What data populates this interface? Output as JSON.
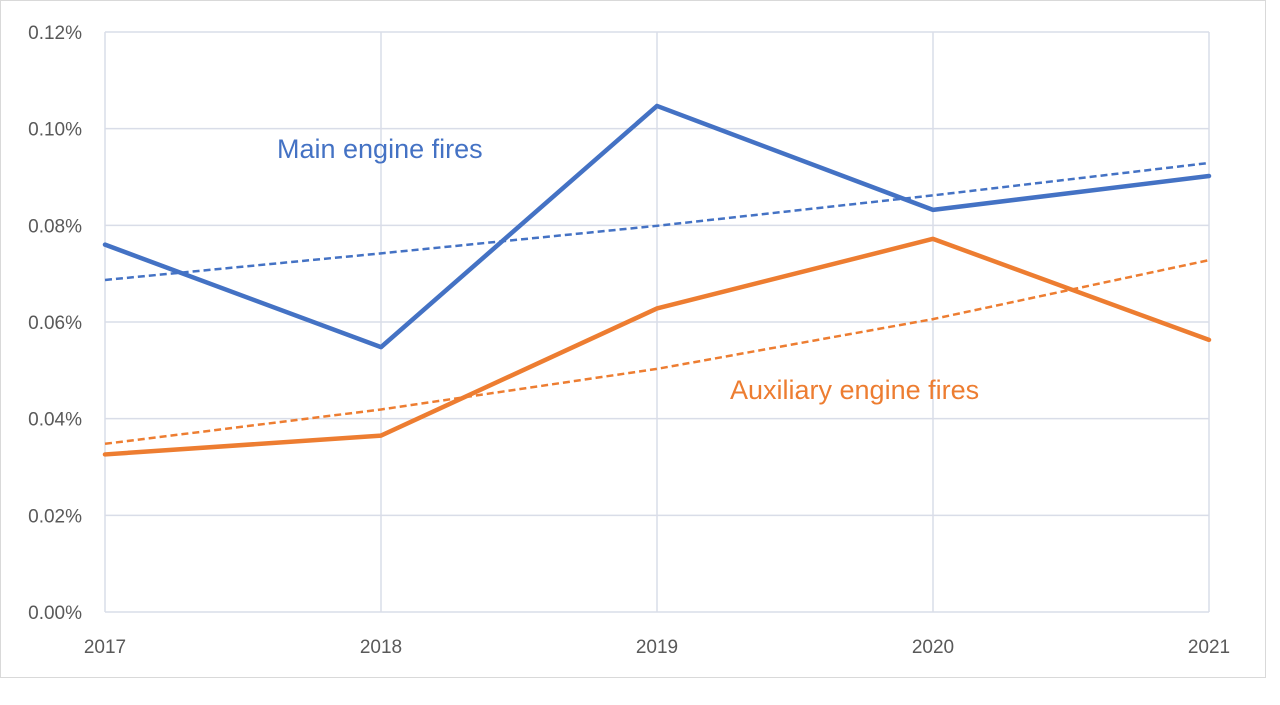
{
  "chart_data": {
    "type": "line",
    "x": [
      "2017",
      "2018",
      "2019",
      "2020",
      "2021"
    ],
    "ylim": [
      0,
      0.12
    ],
    "y_ticks": [
      "0.00%",
      "0.02%",
      "0.04%",
      "0.06%",
      "0.08%",
      "0.10%",
      "0.12%"
    ],
    "y_tick_values": [
      0,
      0.02,
      0.04,
      0.06,
      0.08,
      0.1,
      0.12
    ],
    "grid": true,
    "series": [
      {
        "name": "Main engine fires",
        "color": "#4472C4",
        "values": [
          0.076,
          0.0548,
          0.1047,
          0.0832,
          0.0902
        ],
        "trendline": [
          0.0687,
          0.0742,
          0.0799,
          0.0862,
          0.0929
        ]
      },
      {
        "name": "Auxiliary engine fires",
        "color": "#ED7D31",
        "values": [
          0.0326,
          0.0365,
          0.0628,
          0.0772,
          0.0563
        ],
        "trendline": [
          0.0348,
          0.0419,
          0.0503,
          0.0606,
          0.0728
        ]
      }
    ]
  }
}
